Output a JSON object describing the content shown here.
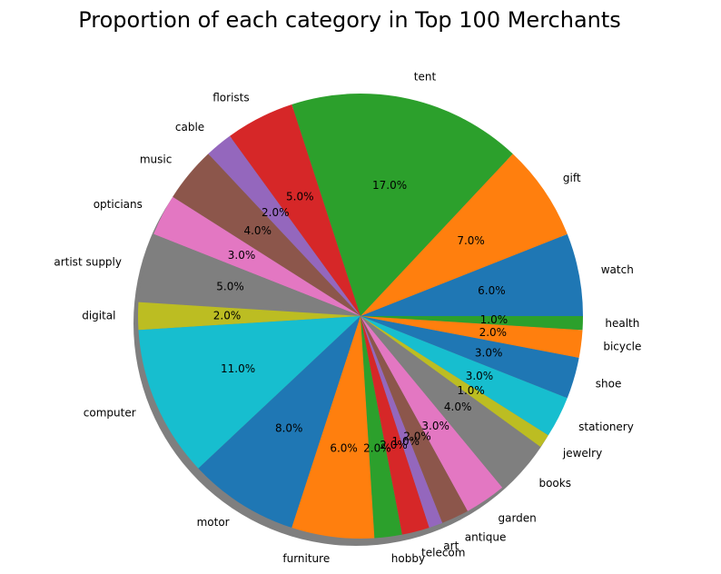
{
  "chart_data": {
    "type": "pie",
    "title": "Proportion of each category in Top 100 Merchants",
    "shadow": true,
    "start_angle_deg": 0,
    "direction": "counterclockwise",
    "slices": [
      {
        "label": "watch",
        "value": 6.0,
        "pct_label": "6.0%",
        "color": "#1f77b4"
      },
      {
        "label": "gift",
        "value": 7.0,
        "pct_label": "7.0%",
        "color": "#ff7f0e"
      },
      {
        "label": "tent",
        "value": 17.0,
        "pct_label": "17.0%",
        "color": "#2ca02c"
      },
      {
        "label": "florists",
        "value": 5.0,
        "pct_label": "5.0%",
        "color": "#d62728"
      },
      {
        "label": "cable",
        "value": 2.0,
        "pct_label": "2.0%",
        "color": "#9467bd"
      },
      {
        "label": "music",
        "value": 4.0,
        "pct_label": "4.0%",
        "color": "#8c564b"
      },
      {
        "label": "opticians",
        "value": 3.0,
        "pct_label": "3.0%",
        "color": "#e377c2"
      },
      {
        "label": "artist supply",
        "value": 5.0,
        "pct_label": "5.0%",
        "color": "#7f7f7f"
      },
      {
        "label": "digital",
        "value": 2.0,
        "pct_label": "2.0%",
        "color": "#bcbd22"
      },
      {
        "label": "computer",
        "value": 11.0,
        "pct_label": "11.0%",
        "color": "#17becf"
      },
      {
        "label": "motor",
        "value": 8.0,
        "pct_label": "8.0%",
        "color": "#1f77b4"
      },
      {
        "label": "furniture",
        "value": 6.0,
        "pct_label": "6.0%",
        "color": "#ff7f0e"
      },
      {
        "label": "hobby",
        "value": 2.0,
        "pct_label": "2.0%",
        "color": "#2ca02c"
      },
      {
        "label": "telecom",
        "value": 2.0,
        "pct_label": "2.0%",
        "color": "#d62728"
      },
      {
        "label": "art",
        "value": 1.0,
        "pct_label": "1.0%",
        "color": "#9467bd"
      },
      {
        "label": "antique",
        "value": 2.0,
        "pct_label": "2.0%",
        "color": "#8c564b"
      },
      {
        "label": "garden",
        "value": 3.0,
        "pct_label": "3.0%",
        "color": "#e377c2"
      },
      {
        "label": "books",
        "value": 4.0,
        "pct_label": "4.0%",
        "color": "#7f7f7f"
      },
      {
        "label": "jewelry",
        "value": 1.0,
        "pct_label": "1.0%",
        "color": "#bcbd22"
      },
      {
        "label": "stationery",
        "value": 3.0,
        "pct_label": "3.0%",
        "color": "#17becf"
      },
      {
        "label": "shoe",
        "value": 3.0,
        "pct_label": "3.0%",
        "color": "#1f77b4"
      },
      {
        "label": "bicycle",
        "value": 2.0,
        "pct_label": "2.0%",
        "color": "#ff7f0e"
      },
      {
        "label": "health",
        "value": 1.0,
        "pct_label": "1.0%",
        "color": "#2ca02c"
      }
    ]
  }
}
